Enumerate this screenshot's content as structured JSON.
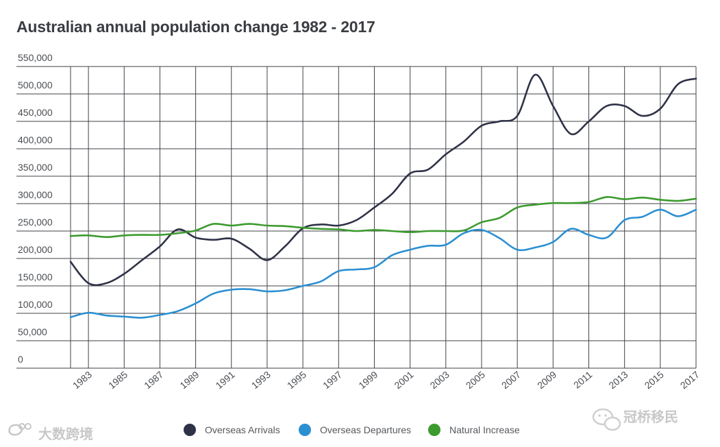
{
  "chart_data": {
    "type": "line",
    "title": "Australian annual population change 1982 - 2017",
    "xlabel": "",
    "ylabel": "",
    "xlim": [
      1982,
      2017
    ],
    "ylim": [
      0,
      550000
    ],
    "grid": true,
    "y_ticks": [
      0,
      50000,
      100000,
      150000,
      200000,
      250000,
      300000,
      350000,
      400000,
      450000,
      500000,
      550000
    ],
    "y_tick_labels": [
      "0",
      "50,000",
      "100,000",
      "150,000",
      "200,000",
      "250,000",
      "300,000",
      "350,000",
      "400,000",
      "450,000",
      "500,000",
      "550,000"
    ],
    "x_ticks": [
      1983,
      1985,
      1987,
      1989,
      1991,
      1993,
      1995,
      1997,
      1999,
      2001,
      2003,
      2005,
      2007,
      2009,
      2011,
      2013,
      2015,
      2017
    ],
    "x_tick_labels": [
      "1983",
      "1985",
      "1987",
      "1989",
      "1991",
      "1993",
      "1995",
      "1997",
      "1999",
      "2001",
      "2003",
      "2005",
      "2007",
      "2009",
      "2011",
      "2013",
      "2015",
      "2017"
    ],
    "x": [
      1982,
      1983,
      1984,
      1985,
      1986,
      1987,
      1988,
      1989,
      1990,
      1991,
      1992,
      1993,
      1994,
      1995,
      1996,
      1997,
      1998,
      1999,
      2000,
      2001,
      2002,
      2003,
      2004,
      2005,
      2006,
      2007,
      2008,
      2009,
      2010,
      2011,
      2012,
      2013,
      2014,
      2015,
      2016,
      2017
    ],
    "legend_position": "bottom",
    "series": [
      {
        "name": "Overseas Arrivals",
        "color": "#2f3247",
        "values": [
          194000,
          155000,
          155000,
          172000,
          197000,
          222000,
          253000,
          238000,
          234000,
          236000,
          218000,
          197000,
          222000,
          255000,
          262000,
          260000,
          270000,
          293000,
          318000,
          355000,
          362000,
          390000,
          413000,
          442000,
          450000,
          460000,
          535000,
          478000,
          427000,
          450000,
          478000,
          478000,
          460000,
          473000,
          518000,
          528000
        ]
      },
      {
        "name": "Overseas Departures",
        "color": "#2b8fd2",
        "values": [
          93000,
          101000,
          96000,
          94000,
          92000,
          97000,
          104000,
          118000,
          136000,
          143000,
          144000,
          140000,
          142000,
          150000,
          158000,
          177000,
          180000,
          184000,
          206000,
          216000,
          223000,
          225000,
          246000,
          252000,
          237000,
          216000,
          220000,
          230000,
          254000,
          243000,
          238000,
          270000,
          276000,
          289000,
          277000,
          289000
        ]
      },
      {
        "name": "Natural Increase",
        "color": "#3c9a2e",
        "values": [
          241000,
          242000,
          239000,
          242000,
          243000,
          243000,
          246000,
          251000,
          263000,
          260000,
          263000,
          260000,
          259000,
          256000,
          254000,
          253000,
          250000,
          252000,
          250000,
          248000,
          250000,
          250000,
          251000,
          266000,
          274000,
          293000,
          298000,
          301000,
          301000,
          303000,
          312000,
          308000,
          311000,
          307000,
          305000,
          309000
        ]
      }
    ]
  },
  "watermarks": {
    "left": "大数跨境",
    "right": "冠桥移民"
  }
}
